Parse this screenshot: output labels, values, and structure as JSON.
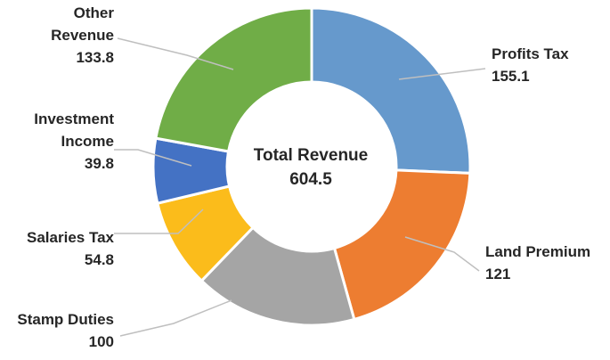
{
  "chart_data": {
    "type": "pie",
    "variant": "donut",
    "center_label": "Total Revenue",
    "center_value": "604.5",
    "slices": [
      {
        "label_lines": [
          "Profits Tax"
        ],
        "value": 155.1,
        "value_text": "155.1",
        "color": "#6699CC"
      },
      {
        "label_lines": [
          "Land Premium"
        ],
        "value": 121,
        "value_text": "121",
        "color": "#ED7D31"
      },
      {
        "label_lines": [
          "Stamp Duties"
        ],
        "value": 100,
        "value_text": "100",
        "color": "#A5A5A5"
      },
      {
        "label_lines": [
          "Salaries Tax"
        ],
        "value": 54.8,
        "value_text": "54.8",
        "color": "#FBBC1B"
      },
      {
        "label_lines": [
          "Investment",
          "Income"
        ],
        "value": 39.8,
        "value_text": "39.8",
        "color": "#4472C4"
      },
      {
        "label_lines": [
          "Other",
          "Revenue"
        ],
        "value": 133.8,
        "value_text": "133.8",
        "color": "#70AD47"
      }
    ]
  }
}
